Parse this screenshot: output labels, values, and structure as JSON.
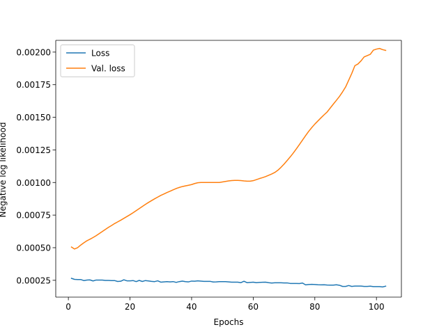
{
  "chart_data": {
    "type": "line",
    "title": "",
    "xlabel": "Epochs",
    "ylabel": "Negative log likelihood",
    "xlim": [
      -4.1,
      108.1
    ],
    "ylim": [
      0.000121,
      0.00209
    ],
    "xticks": [
      0,
      20,
      40,
      60,
      80,
      100
    ],
    "xtick_labels": [
      "0",
      "20",
      "40",
      "60",
      "80",
      "100"
    ],
    "yticks": [
      0.00025,
      0.0005,
      0.00075,
      0.001,
      0.00125,
      0.0015,
      0.00175,
      0.002
    ],
    "ytick_labels": [
      "0.00025",
      "0.00050",
      "0.00075",
      "0.00100",
      "0.00125",
      "0.00150",
      "0.00175",
      "0.00200"
    ],
    "grid": false,
    "legend": "top-left",
    "series": [
      {
        "name": "Loss",
        "color": "#1f77b4",
        "x": [
          1,
          2,
          3,
          4,
          5,
          6,
          7,
          8,
          9,
          10,
          11,
          12,
          13,
          14,
          15,
          16,
          17,
          18,
          19,
          20,
          21,
          22,
          23,
          24,
          25,
          26,
          27,
          28,
          29,
          30,
          31,
          32,
          33,
          34,
          35,
          36,
          37,
          38,
          39,
          40,
          41,
          42,
          43,
          44,
          45,
          46,
          47,
          48,
          49,
          50,
          51,
          52,
          53,
          54,
          55,
          56,
          57,
          58,
          59,
          60,
          61,
          62,
          63,
          64,
          65,
          66,
          67,
          68,
          69,
          70,
          71,
          72,
          73,
          74,
          75,
          76,
          77,
          78,
          79,
          80,
          81,
          82,
          83,
          84,
          85,
          86,
          87,
          88,
          89,
          90,
          91,
          92,
          93,
          94,
          95,
          96,
          97,
          98,
          99,
          100,
          101,
          102,
          103
        ],
        "y": [
          0.000265,
          0.000257,
          0.000256,
          0.000256,
          0.000248,
          0.000252,
          0.000253,
          0.000245,
          0.000252,
          0.000252,
          0.000252,
          0.000249,
          0.000249,
          0.000248,
          0.000248,
          0.000241,
          0.000243,
          0.000254,
          0.000246,
          0.000246,
          0.000248,
          0.00024,
          0.000249,
          0.000241,
          0.000248,
          0.000245,
          0.000242,
          0.00024,
          0.000246,
          0.000236,
          0.000238,
          0.00024,
          0.000238,
          0.00024,
          0.000234,
          0.00024,
          0.000244,
          0.00024,
          0.000238,
          0.000244,
          0.000243,
          0.000246,
          0.000244,
          0.000242,
          0.000242,
          0.000242,
          0.000237,
          0.000238,
          0.00024,
          0.00024,
          0.00024,
          0.000238,
          0.000236,
          0.000236,
          0.000236,
          0.000232,
          0.000243,
          0.000232,
          0.000234,
          0.000236,
          0.000232,
          0.000234,
          0.000235,
          0.000236,
          0.000232,
          0.000229,
          0.000231,
          0.000231,
          0.000231,
          0.00023,
          0.00023,
          0.000226,
          0.000226,
          0.000226,
          0.000225,
          0.000229,
          0.000215,
          0.000218,
          0.000219,
          0.000218,
          0.000216,
          0.000215,
          0.000216,
          0.000214,
          0.000213,
          0.000213,
          0.000216,
          0.000212,
          0.000203,
          0.000203,
          0.00021,
          0.000203,
          0.000206,
          0.000206,
          0.000206,
          0.000203,
          0.000203,
          0.000205,
          0.000202,
          0.000202,
          0.000202,
          0.000199,
          0.000205
        ]
      },
      {
        "name": "Val. loss",
        "color": "#ff7f0e",
        "x": [
          1,
          2,
          3,
          4,
          5,
          6,
          7,
          8,
          9,
          10,
          11,
          12,
          13,
          14,
          15,
          16,
          17,
          18,
          19,
          20,
          21,
          22,
          23,
          24,
          25,
          26,
          27,
          28,
          29,
          30,
          31,
          32,
          33,
          34,
          35,
          36,
          37,
          38,
          39,
          40,
          41,
          42,
          43,
          44,
          45,
          46,
          47,
          48,
          49,
          50,
          51,
          52,
          53,
          54,
          55,
          56,
          57,
          58,
          59,
          60,
          61,
          62,
          63,
          64,
          65,
          66,
          67,
          68,
          69,
          70,
          71,
          72,
          73,
          74,
          75,
          76,
          77,
          78,
          79,
          80,
          81,
          82,
          83,
          84,
          85,
          86,
          87,
          88,
          89,
          90,
          91,
          92,
          93,
          94,
          95,
          96,
          97,
          98,
          99,
          100,
          101,
          102,
          103
        ],
        "y": [
          0.000505,
          0.00049,
          0.0005,
          0.00052,
          0.000537,
          0.000553,
          0.000565,
          0.000578,
          0.000592,
          0.000608,
          0.000624,
          0.00064,
          0.000656,
          0.00067,
          0.000685,
          0.000698,
          0.000711,
          0.000725,
          0.000739,
          0.000753,
          0.000768,
          0.000784,
          0.0008,
          0.000816,
          0.000832,
          0.000847,
          0.000861,
          0.000875,
          0.000888,
          0.000901,
          0.000912,
          0.000923,
          0.000933,
          0.000944,
          0.000954,
          0.000962,
          0.000969,
          0.000974,
          0.000979,
          0.000984,
          0.000992,
          0.000998,
          0.001,
          0.001,
          0.001,
          0.001,
          0.001,
          0.001,
          0.001,
          0.001004,
          0.001008,
          0.001012,
          0.001015,
          0.001016,
          0.001016,
          0.001015,
          0.001012,
          0.00101,
          0.00101,
          0.001014,
          0.001022,
          0.00103,
          0.001037,
          0.001045,
          0.001055,
          0.001065,
          0.001077,
          0.001094,
          0.001116,
          0.001141,
          0.001168,
          0.001196,
          0.001226,
          0.001258,
          0.001291,
          0.001325,
          0.001359,
          0.001392,
          0.001421,
          0.001448,
          0.001472,
          0.001496,
          0.001519,
          0.001541,
          0.001571,
          0.001601,
          0.00163,
          0.00166,
          0.001695,
          0.001733,
          0.001785,
          0.001837,
          0.001896,
          0.001909,
          0.001933,
          0.001963,
          0.001973,
          0.001983,
          0.002015,
          0.002023,
          0.002028,
          0.002019,
          0.002013
        ]
      }
    ]
  }
}
